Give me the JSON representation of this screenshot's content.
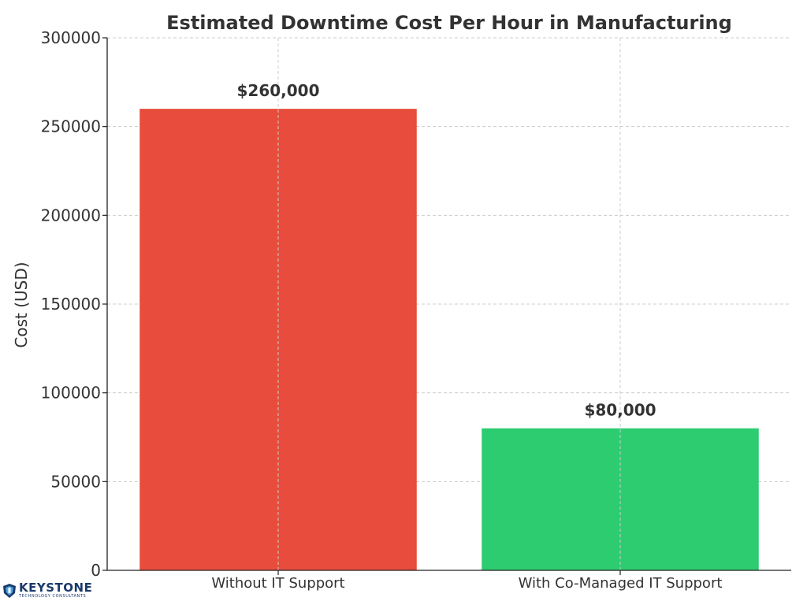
{
  "chart_data": {
    "type": "bar",
    "title": "Estimated Downtime Cost Per Hour in Manufacturing",
    "xlabel": "",
    "ylabel": "Cost (USD)",
    "categories": [
      "Without IT Support",
      "With Co-Managed IT Support"
    ],
    "values": [
      260000,
      80000
    ],
    "data_labels": [
      "$260,000",
      "$80,000"
    ],
    "colors": [
      "#e74c3c",
      "#2ecc71"
    ],
    "ylim": [
      0,
      300000
    ],
    "yticks": [
      0,
      50000,
      100000,
      150000,
      200000,
      250000,
      300000
    ],
    "ytick_labels": [
      "0",
      "50000",
      "100000",
      "150000",
      "200000",
      "250000",
      "300000"
    ],
    "grid": true,
    "legend": "none"
  },
  "watermark": {
    "logo_main": "KEYSTONE",
    "logo_sub": "TECHNOLOGY CONSULTANTS",
    "brand_color": "#1b3a6b",
    "icon": "keystone-shield-icon"
  }
}
